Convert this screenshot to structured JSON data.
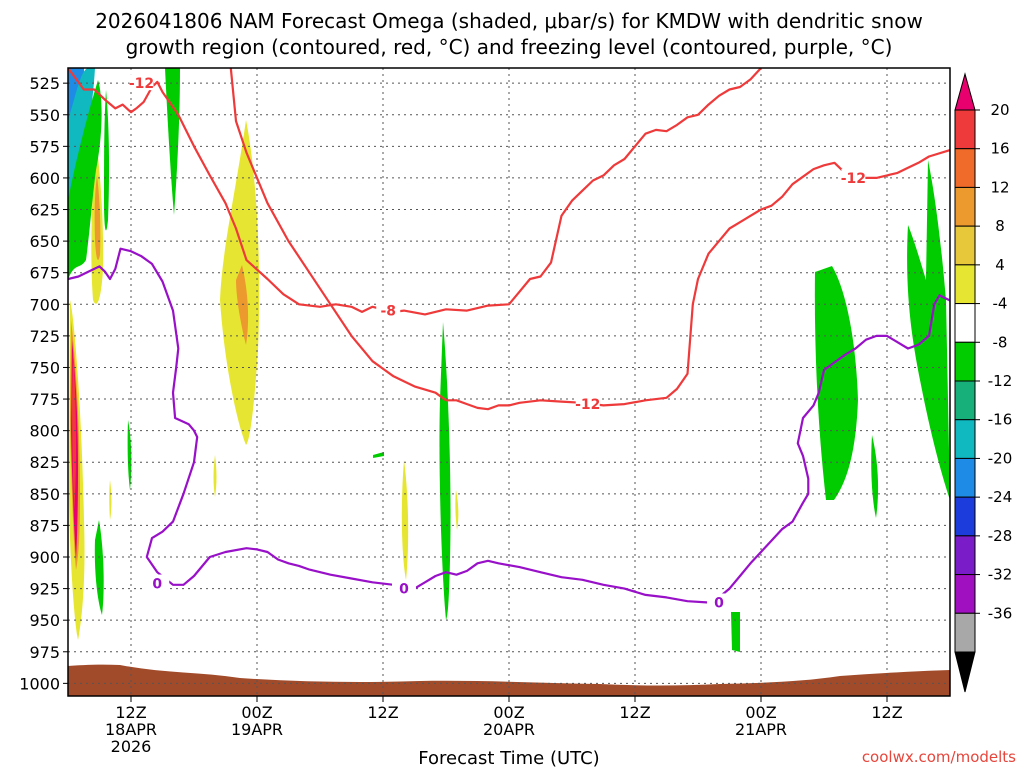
{
  "chart_data": {
    "type": "contour",
    "title_line1": "2026041806 NAM Forecast Omega (shaded, μbar/s) for KMDW with dendritic snow",
    "title_line2": "growth region (contoured, red, °C) and freezing level (contoured, purple, °C)",
    "xlabel": "Forecast Time (UTC)",
    "credit": "coolwx.com/modelts",
    "x_range_hours": [
      0,
      84
    ],
    "y_range_mb": [
      1010,
      513
    ],
    "x_ticks": [
      {
        "hour": 6,
        "line1": "12Z",
        "line2": "18APR",
        "line3": "2026"
      },
      {
        "hour": 18,
        "line1": "00Z",
        "line2": "19APR",
        "line3": ""
      },
      {
        "hour": 30,
        "line1": "12Z",
        "line2": "",
        "line3": ""
      },
      {
        "hour": 42,
        "line1": "00Z",
        "line2": "20APR",
        "line3": ""
      },
      {
        "hour": 54,
        "line1": "12Z",
        "line2": "",
        "line3": ""
      },
      {
        "hour": 66,
        "line1": "00Z",
        "line2": "21APR",
        "line3": ""
      },
      {
        "hour": 78,
        "line1": "12Z",
        "line2": "",
        "line3": ""
      }
    ],
    "y_ticks": [
      525,
      550,
      575,
      600,
      625,
      650,
      675,
      700,
      725,
      750,
      775,
      800,
      825,
      850,
      875,
      900,
      925,
      950,
      975,
      1000
    ],
    "colorbar": {
      "levels": [
        20,
        16,
        12,
        8,
        4,
        -4,
        -8,
        -12,
        -16,
        -20,
        -24,
        -28,
        -32,
        -36
      ],
      "colors": [
        "#e8006e",
        "#ee3a3a",
        "#f06a2a",
        "#ec9a2e",
        "#e6c83a",
        "#e6e632",
        "#ffffff",
        "#00cc00",
        "#18b07a",
        "#10b8c0",
        "#1e8ce6",
        "#1c3cdc",
        "#7a1cc8",
        "#a010c0",
        "#a8a8a8",
        "#000000"
      ]
    },
    "series": [
      {
        "name": "-12C dendritic (red)",
        "color": "#ee3a3a",
        "labels": [
          "-12",
          "-8",
          "-12",
          "-12"
        ],
        "points": [
          [
            0,
            513
          ],
          [
            1.5,
            530
          ],
          [
            2.5,
            530
          ],
          [
            3.5,
            538
          ],
          [
            4.5,
            545
          ],
          [
            5.2,
            542
          ],
          [
            6,
            548
          ],
          [
            6.5,
            545
          ],
          [
            7.2,
            540
          ],
          [
            8,
            528
          ],
          [
            8.5,
            524
          ],
          [
            9,
            532
          ],
          [
            10.5,
            550
          ],
          [
            12,
            575
          ],
          [
            13.5,
            598
          ],
          [
            15,
            620
          ],
          [
            16,
            640
          ],
          [
            17,
            665
          ],
          [
            19,
            680
          ],
          [
            20.5,
            692
          ],
          [
            22,
            700
          ],
          [
            24,
            702
          ],
          [
            25.5,
            700
          ],
          [
            27,
            702
          ],
          [
            28,
            706
          ],
          [
            29,
            702
          ],
          [
            30,
            704
          ],
          [
            31,
            706
          ],
          [
            32,
            705
          ],
          [
            34,
            708
          ],
          [
            36,
            704
          ],
          [
            38,
            705
          ],
          [
            40,
            701
          ],
          [
            42,
            700
          ],
          [
            43,
            690
          ],
          [
            44,
            680
          ],
          [
            45,
            678
          ],
          [
            46,
            667
          ],
          [
            47,
            630
          ],
          [
            48,
            618
          ],
          [
            49,
            610
          ],
          [
            50,
            602
          ],
          [
            51,
            598
          ],
          [
            52,
            590
          ],
          [
            53,
            585
          ],
          [
            54,
            575
          ],
          [
            55,
            565
          ],
          [
            56,
            562
          ],
          [
            57,
            563
          ],
          [
            58,
            558
          ],
          [
            59,
            552
          ],
          [
            60,
            550
          ],
          [
            61,
            542
          ],
          [
            62,
            535
          ],
          [
            63,
            530
          ],
          [
            64,
            528
          ],
          [
            65,
            522
          ],
          [
            66,
            513
          ]
        ]
      },
      {
        "name": "-12C lower (red)",
        "color": "#ee3a3a",
        "points": [
          [
            15.5,
            513
          ],
          [
            16,
            555
          ],
          [
            17,
            580
          ],
          [
            19,
            620
          ],
          [
            21,
            650
          ],
          [
            23,
            675
          ],
          [
            25,
            700
          ],
          [
            27,
            725
          ],
          [
            29,
            745
          ],
          [
            31,
            757
          ],
          [
            33,
            765
          ],
          [
            35,
            770
          ],
          [
            36,
            776
          ],
          [
            37,
            776
          ],
          [
            38,
            779
          ],
          [
            39,
            782
          ],
          [
            40,
            783
          ],
          [
            41,
            780
          ],
          [
            42,
            780
          ],
          [
            43,
            778
          ],
          [
            45,
            776
          ],
          [
            47,
            777
          ],
          [
            49,
            778
          ],
          [
            51,
            780
          ],
          [
            53,
            779
          ],
          [
            55,
            776
          ],
          [
            57,
            774
          ],
          [
            58,
            767
          ],
          [
            59,
            755
          ],
          [
            59.5,
            700
          ],
          [
            60,
            680
          ],
          [
            61,
            660
          ],
          [
            62,
            650
          ],
          [
            63,
            640
          ],
          [
            64,
            635
          ],
          [
            65,
            630
          ],
          [
            66,
            625
          ],
          [
            67,
            622
          ],
          [
            68,
            615
          ],
          [
            69,
            605
          ],
          [
            70,
            599
          ],
          [
            71,
            593
          ],
          [
            72,
            590
          ],
          [
            73,
            588
          ],
          [
            74,
            596
          ],
          [
            75,
            600
          ],
          [
            76,
            600
          ],
          [
            77,
            600
          ],
          [
            78,
            598
          ],
          [
            79,
            596
          ],
          [
            80,
            592
          ],
          [
            81,
            588
          ],
          [
            82,
            583
          ],
          [
            84,
            578
          ]
        ]
      },
      {
        "name": "0C freezing (purple)",
        "color": "#9810c8",
        "labels": [
          "0",
          "0",
          "0"
        ],
        "points": [
          [
            0,
            680
          ],
          [
            1,
            678
          ],
          [
            2,
            674
          ],
          [
            3,
            670
          ],
          [
            3.5,
            674
          ],
          [
            4,
            680
          ],
          [
            4.5,
            672
          ],
          [
            5,
            656
          ],
          [
            6,
            658
          ],
          [
            7,
            662
          ],
          [
            8,
            668
          ],
          [
            9,
            682
          ],
          [
            10,
            705
          ],
          [
            10.5,
            735
          ],
          [
            10.3,
            750
          ],
          [
            10,
            770
          ],
          [
            10.2,
            790
          ],
          [
            11.5,
            795
          ],
          [
            12,
            800
          ],
          [
            12.3,
            805
          ],
          [
            12,
            825
          ],
          [
            11,
            850
          ],
          [
            10,
            872
          ],
          [
            9,
            880
          ],
          [
            8,
            885
          ],
          [
            7.5,
            900
          ],
          [
            8.5,
            912
          ],
          [
            10,
            922
          ],
          [
            11,
            922
          ],
          [
            12,
            915
          ],
          [
            13.5,
            900
          ],
          [
            15,
            896
          ],
          [
            17,
            893
          ],
          [
            18,
            894
          ],
          [
            19,
            896
          ],
          [
            20,
            902
          ],
          [
            21,
            905
          ],
          [
            22,
            907
          ],
          [
            23,
            910
          ],
          [
            25,
            914
          ],
          [
            27,
            917
          ],
          [
            29,
            920
          ],
          [
            31,
            922
          ],
          [
            32,
            925
          ],
          [
            33,
            925
          ],
          [
            34,
            920
          ],
          [
            35,
            915
          ],
          [
            36,
            912
          ],
          [
            37,
            914
          ],
          [
            38,
            911
          ],
          [
            39,
            905
          ],
          [
            40,
            903
          ],
          [
            41,
            905
          ],
          [
            43,
            908
          ],
          [
            45,
            912
          ],
          [
            47,
            916
          ],
          [
            49,
            918
          ],
          [
            51,
            922
          ],
          [
            53,
            925
          ],
          [
            55,
            930
          ],
          [
            57,
            932
          ],
          [
            59,
            935
          ],
          [
            61,
            936
          ],
          [
            62,
            932
          ],
          [
            63,
            925
          ],
          [
            64,
            915
          ],
          [
            65,
            905
          ],
          [
            66,
            896
          ],
          [
            67,
            887
          ],
          [
            68,
            878
          ],
          [
            69,
            872
          ],
          [
            70,
            857
          ],
          [
            70.5,
            850
          ],
          [
            70.5,
            838
          ],
          [
            70,
            820
          ],
          [
            69.5,
            810
          ],
          [
            70,
            790
          ],
          [
            71,
            780
          ],
          [
            71.5,
            770
          ],
          [
            72,
            752
          ],
          [
            73,
            746
          ],
          [
            74,
            740
          ],
          [
            75,
            735
          ],
          [
            76,
            728
          ],
          [
            77,
            725
          ],
          [
            78,
            725
          ],
          [
            79,
            730
          ],
          [
            80,
            735
          ],
          [
            81,
            732
          ],
          [
            82,
            725
          ],
          [
            82.5,
            700
          ],
          [
            83,
            693
          ],
          [
            84,
            697
          ]
        ]
      }
    ]
  }
}
